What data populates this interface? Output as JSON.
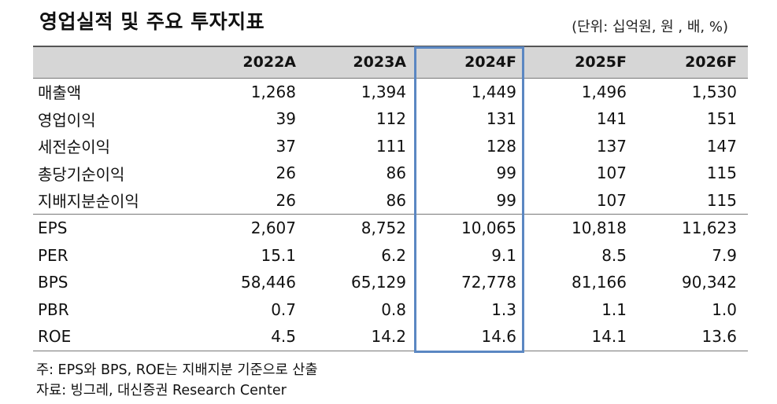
{
  "header": {
    "title": "영업실적 및 주요 투자지표",
    "unit": "(단위: 십억원, 원 , 배, %)"
  },
  "table": {
    "columns": [
      "",
      "2022A",
      "2023A",
      "2024F",
      "2025F",
      "2026F"
    ],
    "highlighted_column": "2024F",
    "rows": [
      {
        "label": "매출액",
        "values": [
          "1,268",
          "1,394",
          "1,449",
          "1,496",
          "1,530"
        ]
      },
      {
        "label": "영업이익",
        "values": [
          "39",
          "112",
          "131",
          "141",
          "151"
        ]
      },
      {
        "label": "세전순이익",
        "values": [
          "37",
          "111",
          "128",
          "137",
          "147"
        ]
      },
      {
        "label": "총당기순이익",
        "values": [
          "26",
          "86",
          "99",
          "107",
          "115"
        ]
      },
      {
        "label": "지배지분순이익",
        "values": [
          "26",
          "86",
          "99",
          "107",
          "115"
        ]
      },
      {
        "label": "EPS",
        "values": [
          "2,607",
          "8,752",
          "10,065",
          "10,818",
          "11,623"
        ]
      },
      {
        "label": "PER",
        "values": [
          "15.1",
          "6.2",
          "9.1",
          "8.5",
          "7.9"
        ]
      },
      {
        "label": "BPS",
        "values": [
          "58,446",
          "65,129",
          "72,778",
          "81,166",
          "90,342"
        ]
      },
      {
        "label": "PBR",
        "values": [
          "0.7",
          "0.8",
          "1.3",
          "1.1",
          "1.0"
        ]
      },
      {
        "label": "ROE",
        "values": [
          "4.5",
          "14.2",
          "14.6",
          "14.1",
          "13.6"
        ]
      }
    ]
  },
  "notes": {
    "note": "주: EPS와 BPS, ROE는 지배지분 기준으로 산출",
    "source": "자료: 빙그레, 대신증권 Research Center"
  },
  "colors": {
    "header_bg": "#d6d6d6",
    "highlight_border": "#5b87c2"
  }
}
